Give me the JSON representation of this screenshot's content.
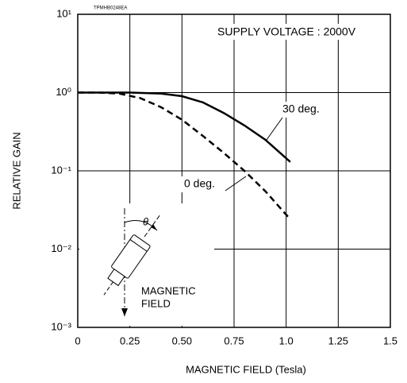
{
  "chart_data": {
    "type": "line",
    "x_label": "MAGNETIC FIELD (Tesla)",
    "y_label": "RELATIVE GAIN",
    "figure_code": "TPMHB0248EA",
    "condition": "SUPPLY VOLTAGE : 2000V",
    "inset_labels": [
      "θ",
      "MAGNETIC",
      "FIELD"
    ],
    "log_y": true,
    "grid": true,
    "xlim": [
      0,
      1.5
    ],
    "xticks": [
      0,
      0.25,
      {
        "value": 0.5,
        "label": "0.50"
      },
      0.75,
      {
        "value": 1,
        "label": "1.0"
      },
      1.25,
      1.5
    ],
    "ylim": [
      0.001,
      10
    ],
    "yticks": [
      {
        "value": 0.001,
        "label": "10⁻³"
      },
      {
        "value": 0.01,
        "label": "10⁻²"
      },
      {
        "value": 0.1,
        "label": "10⁻¹"
      },
      {
        "value": 1,
        "label": "10⁰"
      },
      {
        "value": 10,
        "label": "10¹"
      }
    ],
    "series": [
      {
        "name": "30 deg.",
        "color": "#000000",
        "dash": false,
        "x": [
          0,
          0.25,
          0.4,
          0.5,
          0.6,
          0.7,
          0.8,
          0.9,
          1.02
        ],
        "values": [
          1.0,
          1.0,
          0.97,
          0.9,
          0.75,
          0.55,
          0.38,
          0.25,
          0.13
        ]
      },
      {
        "name": "0 deg.",
        "color": "#000000",
        "dash": true,
        "x": [
          0,
          0.1,
          0.2,
          0.3,
          0.4,
          0.5,
          0.6,
          0.7,
          0.8,
          0.9,
          1.02
        ],
        "values": [
          1.0,
          1.0,
          0.97,
          0.85,
          0.65,
          0.45,
          0.28,
          0.17,
          0.1,
          0.055,
          0.024
        ]
      }
    ]
  }
}
